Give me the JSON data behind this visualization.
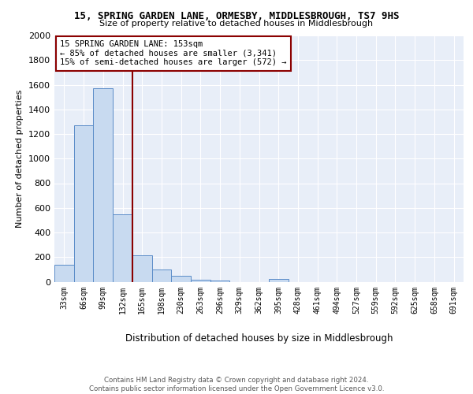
{
  "title1": "15, SPRING GARDEN LANE, ORMESBY, MIDDLESBROUGH, TS7 9HS",
  "title2": "Size of property relative to detached houses in Middlesbrough",
  "xlabel": "Distribution of detached houses by size in Middlesbrough",
  "ylabel": "Number of detached properties",
  "categories": [
    "33sqm",
    "66sqm",
    "99sqm",
    "132sqm",
    "165sqm",
    "198sqm",
    "230sqm",
    "263sqm",
    "296sqm",
    "329sqm",
    "362sqm",
    "395sqm",
    "428sqm",
    "461sqm",
    "494sqm",
    "527sqm",
    "559sqm",
    "592sqm",
    "625sqm",
    "658sqm",
    "691sqm"
  ],
  "values": [
    140,
    1270,
    1570,
    550,
    215,
    100,
    50,
    15,
    10,
    0,
    0,
    20,
    0,
    0,
    0,
    0,
    0,
    0,
    0,
    0,
    0
  ],
  "bar_color": "#c8daf0",
  "bar_edge_color": "#5b8cc8",
  "annotation_text": "15 SPRING GARDEN LANE: 153sqm\n← 85% of detached houses are smaller (3,341)\n15% of semi-detached houses are larger (572) →",
  "footer": "Contains HM Land Registry data © Crown copyright and database right 2024.\nContains public sector information licensed under the Open Government Licence v3.0.",
  "ylim": [
    0,
    2000
  ],
  "yticks": [
    0,
    200,
    400,
    600,
    800,
    1000,
    1200,
    1400,
    1600,
    1800,
    2000
  ],
  "bar_width": 1.0,
  "background_color": "#e8eef8",
  "red_line_index": 4.0
}
